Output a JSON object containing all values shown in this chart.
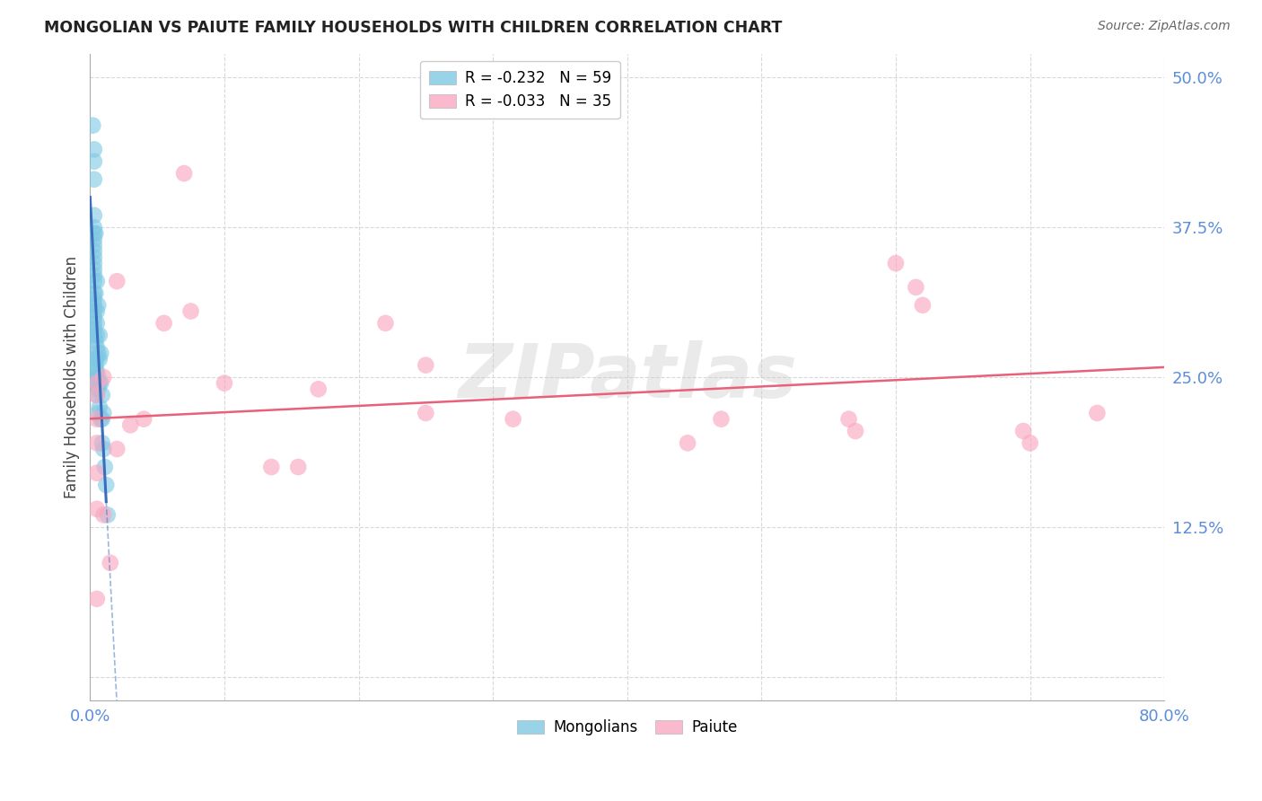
{
  "title": "MONGOLIAN VS PAIUTE FAMILY HOUSEHOLDS WITH CHILDREN CORRELATION CHART",
  "source": "Source: ZipAtlas.com",
  "ylabel": "Family Households with Children",
  "xlim": [
    0.0,
    0.8
  ],
  "ylim": [
    -0.02,
    0.52
  ],
  "ytick_vals": [
    0.0,
    0.125,
    0.25,
    0.375,
    0.5
  ],
  "yticklabels": [
    "",
    "12.5%",
    "25.0%",
    "37.5%",
    "50.0%"
  ],
  "xtick_vals": [
    0.0,
    0.1,
    0.2,
    0.3,
    0.4,
    0.5,
    0.6,
    0.7,
    0.8
  ],
  "xticklabels": [
    "0.0%",
    "",
    "",
    "",
    "",
    "",
    "",
    "",
    "80.0%"
  ],
  "legend_labels": [
    "R = -0.232   N = 59",
    "R = -0.033   N = 35"
  ],
  "mongolian_color": "#7ec8e3",
  "paiute_color": "#f9a8c0",
  "trend_mongolian_color": "#3a6ebd",
  "trend_paiute_color": "#e8607a",
  "tick_color": "#5b8dd9",
  "watermark": "ZIPatlas",
  "mongolian_x": [
    0.002,
    0.003,
    0.003,
    0.003,
    0.003,
    0.003,
    0.003,
    0.003,
    0.003,
    0.003,
    0.003,
    0.003,
    0.003,
    0.003,
    0.003,
    0.003,
    0.003,
    0.003,
    0.003,
    0.003,
    0.003,
    0.003,
    0.003,
    0.004,
    0.004,
    0.004,
    0.004,
    0.004,
    0.004,
    0.004,
    0.005,
    0.005,
    0.005,
    0.005,
    0.005,
    0.005,
    0.005,
    0.005,
    0.005,
    0.006,
    0.006,
    0.006,
    0.006,
    0.006,
    0.007,
    0.007,
    0.007,
    0.007,
    0.008,
    0.008,
    0.008,
    0.009,
    0.009,
    0.009,
    0.01,
    0.01,
    0.011,
    0.012,
    0.013
  ],
  "mongolian_y": [
    0.46,
    0.44,
    0.43,
    0.415,
    0.385,
    0.375,
    0.37,
    0.365,
    0.36,
    0.355,
    0.35,
    0.345,
    0.34,
    0.335,
    0.33,
    0.32,
    0.315,
    0.31,
    0.305,
    0.3,
    0.295,
    0.29,
    0.285,
    0.37,
    0.32,
    0.28,
    0.265,
    0.26,
    0.255,
    0.25,
    0.33,
    0.305,
    0.295,
    0.285,
    0.275,
    0.265,
    0.255,
    0.245,
    0.235,
    0.31,
    0.27,
    0.25,
    0.24,
    0.22,
    0.285,
    0.265,
    0.245,
    0.225,
    0.27,
    0.245,
    0.215,
    0.235,
    0.215,
    0.195,
    0.22,
    0.19,
    0.175,
    0.16,
    0.135
  ],
  "paiute_x": [
    0.005,
    0.005,
    0.005,
    0.005,
    0.005,
    0.005,
    0.005,
    0.01,
    0.01,
    0.015,
    0.02,
    0.02,
    0.03,
    0.04,
    0.055,
    0.07,
    0.075,
    0.1,
    0.135,
    0.155,
    0.17,
    0.22,
    0.25,
    0.25,
    0.315,
    0.445,
    0.47,
    0.565,
    0.57,
    0.6,
    0.615,
    0.62,
    0.695,
    0.7,
    0.75
  ],
  "paiute_y": [
    0.245,
    0.235,
    0.215,
    0.195,
    0.17,
    0.14,
    0.065,
    0.25,
    0.135,
    0.095,
    0.33,
    0.19,
    0.21,
    0.215,
    0.295,
    0.42,
    0.305,
    0.245,
    0.175,
    0.175,
    0.24,
    0.295,
    0.26,
    0.22,
    0.215,
    0.195,
    0.215,
    0.215,
    0.205,
    0.345,
    0.325,
    0.31,
    0.205,
    0.195,
    0.22
  ],
  "background_color": "#ffffff",
  "grid_color": "#d8d8d8"
}
